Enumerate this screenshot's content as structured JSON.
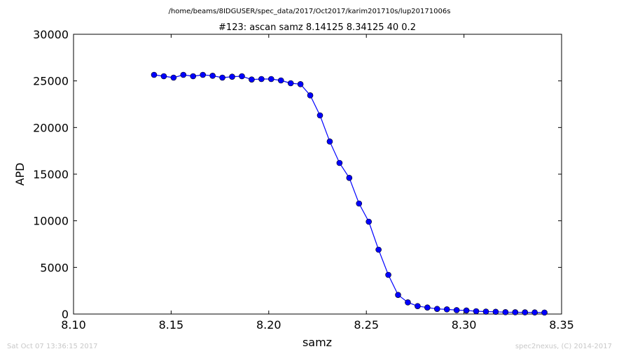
{
  "chart_data": {
    "type": "line",
    "subtitle": "/home/beams/8IDGUSER/spec_data/2017/Oct2017/karim201710s/lup20171006s",
    "title": "#123: ascan  samz 8.14125 8.34125  40 0.2",
    "xlabel": "samz",
    "ylabel": "APD",
    "xlim": [
      8.1,
      8.35
    ],
    "ylim": [
      0,
      30000
    ],
    "xticks": [
      "8.10",
      "8.15",
      "8.20",
      "8.25",
      "8.30",
      "8.35"
    ],
    "yticks": [
      "0",
      "5000",
      "10000",
      "15000",
      "20000",
      "25000",
      "30000"
    ],
    "grid": false,
    "legend": "none",
    "series": [
      {
        "color": "#0000ff",
        "marker": "circle",
        "x": [
          8.14125,
          8.14625,
          8.15125,
          8.15625,
          8.16125,
          8.16625,
          8.17125,
          8.17625,
          8.18125,
          8.18625,
          8.19125,
          8.19625,
          8.20125,
          8.20625,
          8.21125,
          8.21625,
          8.22125,
          8.22625,
          8.23125,
          8.23625,
          8.24125,
          8.24625,
          8.25125,
          8.25625,
          8.26125,
          8.26625,
          8.27125,
          8.27625,
          8.28125,
          8.28625,
          8.29125,
          8.29625,
          8.30125,
          8.30625,
          8.31125,
          8.31625,
          8.32125,
          8.32625,
          8.33125,
          8.33625,
          8.34125
        ],
        "y": [
          25650,
          25500,
          25350,
          25650,
          25500,
          25650,
          25550,
          25350,
          25450,
          25500,
          25150,
          25200,
          25200,
          25050,
          24750,
          24650,
          23450,
          21300,
          18500,
          16200,
          14600,
          11850,
          9900,
          6900,
          4200,
          2050,
          1250,
          850,
          700,
          550,
          500,
          420,
          380,
          300,
          260,
          240,
          200,
          190,
          180,
          170,
          160
        ]
      }
    ]
  },
  "footer": {
    "timestamp": "Sat Oct 07 13:36:15 2017",
    "credit": "spec2nexus, (C) 2014-2017"
  }
}
